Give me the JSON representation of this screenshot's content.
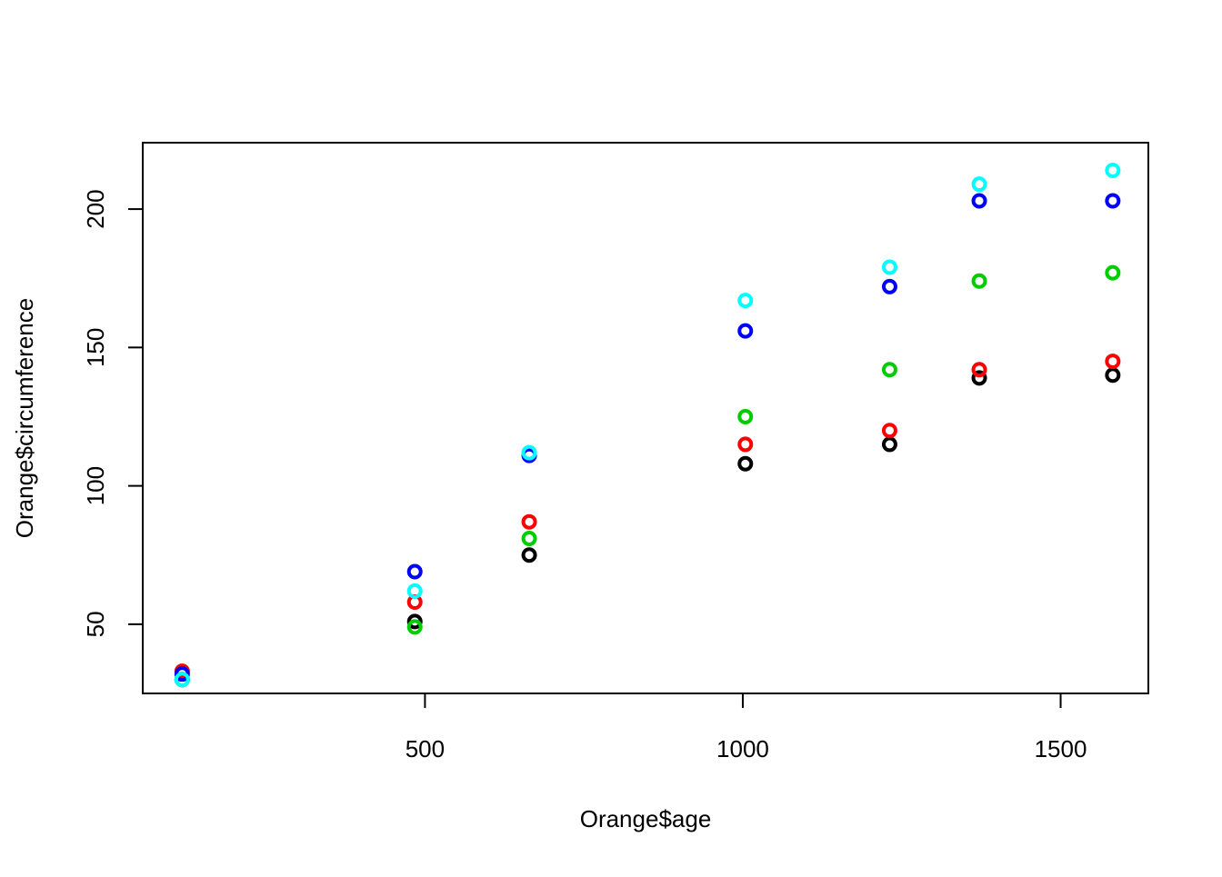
{
  "chart_data": {
    "type": "scatter",
    "title": "",
    "xlabel": "Orange$age",
    "ylabel": "Orange$circumference",
    "xlim": [
      56,
      1638
    ],
    "ylim": [
      25,
      224
    ],
    "x_ticks": [
      500,
      1000,
      1500
    ],
    "y_ticks": [
      50,
      100,
      150,
      200
    ],
    "x_tick_labels": [
      "500",
      "1000",
      "1500"
    ],
    "y_tick_labels": [
      "50",
      "100",
      "150",
      "200"
    ],
    "grid": false,
    "legend": "none",
    "marker": "open-circle",
    "x": [
      118,
      484,
      664,
      1004,
      1231,
      1372,
      1582
    ],
    "series": [
      {
        "color": "#000000",
        "values": [
          30,
          51,
          75,
          108,
          115,
          139,
          140
        ]
      },
      {
        "color": "#ff0000",
        "values": [
          33,
          58,
          87,
          115,
          120,
          142,
          145
        ]
      },
      {
        "color": "#00cd00",
        "values": [
          30,
          49,
          81,
          125,
          142,
          174,
          177
        ]
      },
      {
        "color": "#0000ff",
        "values": [
          32,
          69,
          111,
          156,
          172,
          203,
          203
        ]
      },
      {
        "color": "#00ffff",
        "values": [
          30,
          62,
          112,
          167,
          179,
          209,
          214
        ]
      }
    ]
  }
}
